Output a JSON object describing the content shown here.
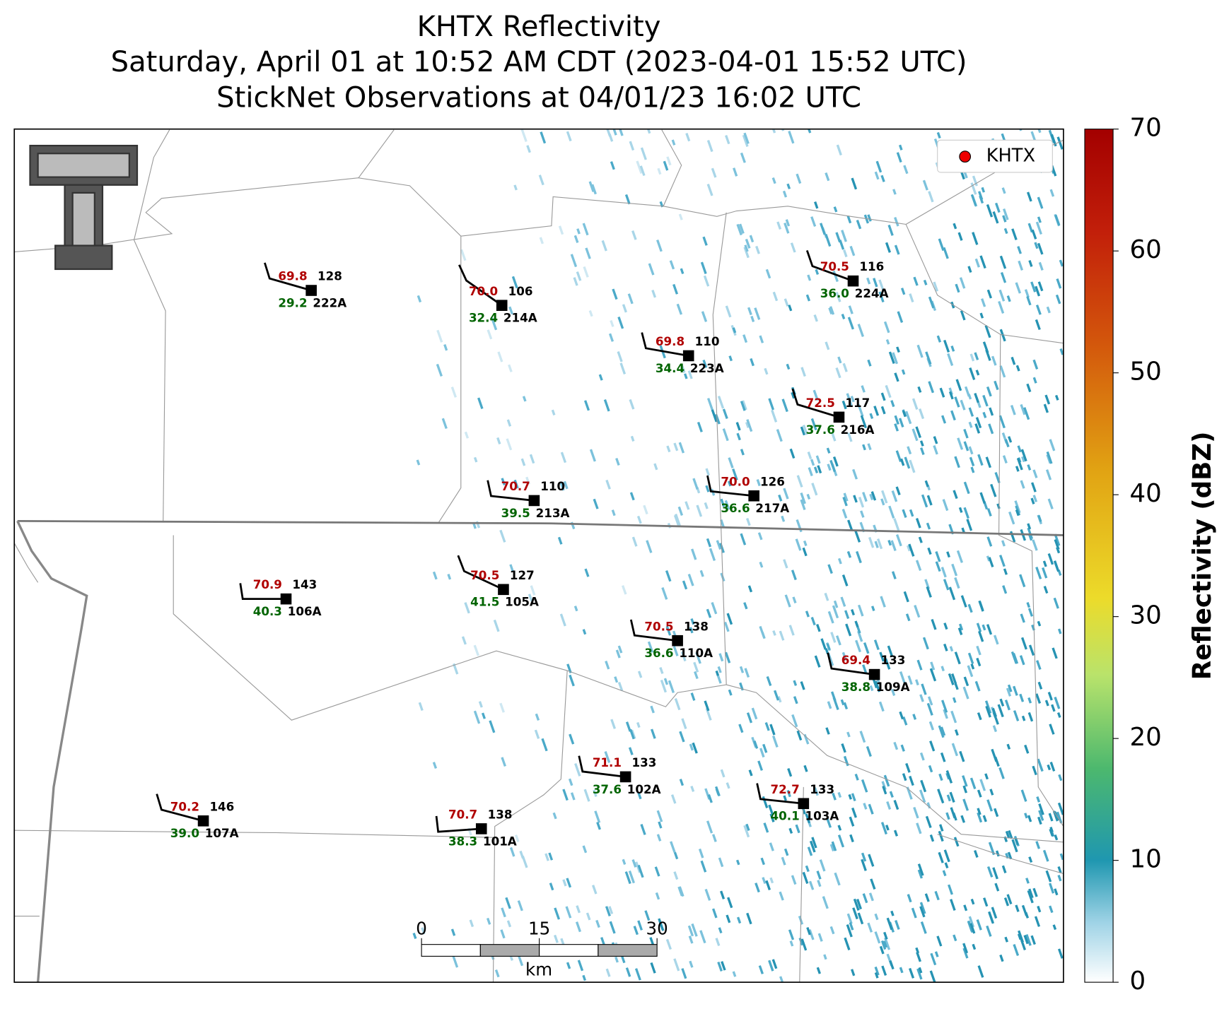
{
  "title": [
    "KHTX Reflectivity",
    "Saturday, April 01 at 10:52 AM CDT (2023-04-01 15:52 UTC)",
    "StickNet Observations at 04/01/23 16:02 UTC"
  ],
  "legend": "KHTX",
  "colorbar": {
    "label": "Reflectivity (dBZ)",
    "lim": [
      0,
      70
    ],
    "ticks": [
      0,
      10,
      20,
      30,
      40,
      50,
      60,
      70
    ]
  },
  "scale_bar": {
    "ticks": [
      0,
      15,
      30
    ],
    "unit": "km"
  },
  "stations": [
    {
      "id": "222A",
      "temperature": "69.8",
      "dewpoint": "29.2",
      "value": "128"
    },
    {
      "id": "214A",
      "temperature": "70.0",
      "dewpoint": "32.4",
      "value": "106"
    },
    {
      "id": "223A",
      "temperature": "69.8",
      "dewpoint": "34.4",
      "value": "110"
    },
    {
      "id": "224A",
      "temperature": "70.5",
      "dewpoint": "36.0",
      "value": "116"
    },
    {
      "id": "216A",
      "temperature": "72.5",
      "dewpoint": "37.6",
      "value": "117"
    },
    {
      "id": "213A",
      "temperature": "70.7",
      "dewpoint": "39.5",
      "value": "110"
    },
    {
      "id": "217A",
      "temperature": "70.0",
      "dewpoint": "36.6",
      "value": "126"
    },
    {
      "id": "106A",
      "temperature": "70.9",
      "dewpoint": "40.3",
      "value": "143"
    },
    {
      "id": "105A",
      "temperature": "70.5",
      "dewpoint": "41.5",
      "value": "127"
    },
    {
      "id": "110A",
      "temperature": "70.5",
      "dewpoint": "36.6",
      "value": "138"
    },
    {
      "id": "109A",
      "temperature": "69.4",
      "dewpoint": "38.8",
      "value": "133"
    },
    {
      "id": "102A",
      "temperature": "71.1",
      "dewpoint": "37.6",
      "value": "133"
    },
    {
      "id": "103A",
      "temperature": "72.7",
      "dewpoint": "40.1",
      "value": "133"
    },
    {
      "id": "107A",
      "temperature": "70.2",
      "dewpoint": "39.0",
      "value": "146"
    },
    {
      "id": "101A",
      "temperature": "70.7",
      "dewpoint": "38.3",
      "value": "138"
    }
  ]
}
